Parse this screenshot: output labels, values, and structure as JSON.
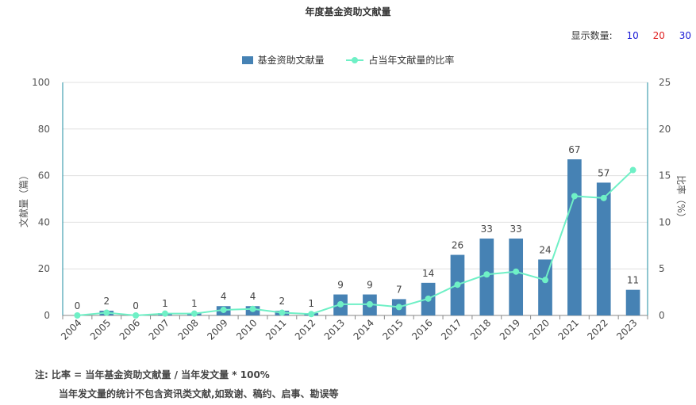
{
  "title": "年度基金资助文献量",
  "display_count": {
    "label": "显示数量:",
    "options": [
      "10",
      "20",
      "30"
    ]
  },
  "colors": {
    "bar": "#4682b4",
    "line": "#6ff0c6",
    "axis": "#1e8ca0",
    "grid": "#e0e0e0",
    "option_blue": "#1a1ad6",
    "option_red": "#e02020"
  },
  "chart_data": {
    "type": "bar",
    "title": "年度基金资助文献量",
    "categories": [
      "2004",
      "2005",
      "2006",
      "2007",
      "2008",
      "2009",
      "2010",
      "2011",
      "2012",
      "2013",
      "2014",
      "2015",
      "2016",
      "2017",
      "2018",
      "2019",
      "2020",
      "2021",
      "2022",
      "2023"
    ],
    "series": [
      {
        "name": "基金资助文献量",
        "type": "bar",
        "axis": "left",
        "values": [
          0,
          2,
          0,
          1,
          1,
          4,
          4,
          2,
          1,
          9,
          9,
          7,
          14,
          26,
          33,
          33,
          24,
          67,
          57,
          11
        ]
      },
      {
        "name": "占当年文献量的比率",
        "type": "line",
        "axis": "right",
        "values": [
          0,
          0.3,
          0,
          0.2,
          0.2,
          0.6,
          0.7,
          0.3,
          0.15,
          1.2,
          1.2,
          0.9,
          1.8,
          3.3,
          4.4,
          4.7,
          3.8,
          12.8,
          12.6,
          15.6
        ]
      }
    ],
    "ylabel": "文献量（篇）",
    "y2label": "比率（%）",
    "ylim": [
      0,
      100
    ],
    "y2lim": [
      0,
      25
    ],
    "yticks": [
      0,
      20,
      40,
      60,
      80,
      100
    ],
    "y2ticks": [
      0,
      5,
      10,
      15,
      20,
      25
    ],
    "grid": true,
    "legend_position": "top-center"
  },
  "note": {
    "line1": "注:  比率 = 当年基金资助文献量 / 当年发文量 * 100%",
    "line2": "当年发文量的统计不包含资讯类文献,如致谢、稿约、启事、勘误等"
  }
}
